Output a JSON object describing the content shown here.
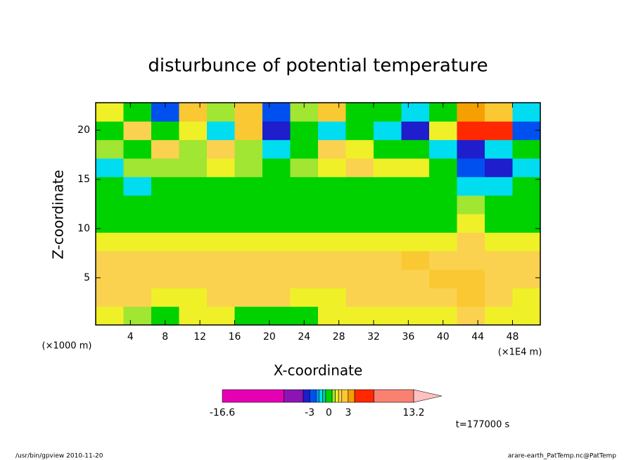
{
  "chart_data": {
    "type": "contour",
    "title": "disturbunce of potential temperature",
    "xlabel": "X-coordinate",
    "ylabel": "Z-coordinate",
    "x_unit_left": "(×1000 m)",
    "x_unit_right": "(×1E4 m)",
    "time_label": "t=177000 s",
    "footer_left": "/usr/bin/gpview  2010-11-20",
    "footer_right": "arare-earth_PatTemp.nc@PatTemp",
    "xlim": [
      0,
      51.2
    ],
    "ylim": [
      0.2,
      22.8
    ],
    "xticks": [
      4,
      8,
      12,
      16,
      20,
      24,
      28,
      32,
      36,
      40,
      44,
      48
    ],
    "yticks": [
      5,
      10,
      15,
      20
    ],
    "levels": [
      -16.6,
      -7,
      -4,
      -3,
      -2,
      -1.5,
      -1,
      -0.5,
      0.5,
      1,
      1.5,
      2,
      3,
      4,
      7,
      13.2
    ],
    "colors": [
      "#e600b4",
      "#8c14b4",
      "#1e1ecd",
      "#0050f0",
      "#0096f0",
      "#00dcf0",
      "#00c8a0",
      "#00d200",
      "#a0e632",
      "#f0f028",
      "#fad250",
      "#fac832",
      "#f5a000",
      "#ff2800",
      "#fa8072"
    ],
    "over_color": "#ffc0c0",
    "colorbar_ticks": [
      -16.6,
      -3,
      0,
      3,
      13.2
    ],
    "field": [
      [
        1.2,
        0.8,
        0.2,
        1.2,
        1.2,
        0.2,
        0.2,
        0.2,
        1.2,
        1.2,
        1.2,
        1.2,
        1.2,
        1.5,
        1.2,
        1.2
      ],
      [
        1.7,
        1.7,
        1.2,
        1.2,
        1.7,
        1.7,
        1.7,
        1.2,
        1.2,
        1.7,
        1.7,
        1.7,
        1.7,
        2.5,
        1.7,
        1.2
      ],
      [
        1.7,
        1.7,
        1.7,
        1.7,
        1.7,
        1.7,
        1.7,
        1.7,
        1.7,
        1.7,
        1.7,
        1.7,
        2.2,
        2.5,
        1.7,
        1.7
      ],
      [
        1.7,
        1.7,
        1.7,
        1.7,
        1.7,
        1.7,
        1.7,
        1.7,
        1.7,
        1.7,
        1.7,
        2.2,
        1.7,
        1.7,
        1.7,
        1.7
      ],
      [
        1.2,
        1.2,
        1.2,
        1.2,
        1.2,
        1.2,
        1.2,
        1.2,
        1.2,
        1.2,
        1.2,
        1.2,
        1.2,
        1.7,
        1.2,
        1.2
      ],
      [
        0,
        0,
        0,
        0,
        0,
        0,
        0,
        0,
        0,
        0,
        0,
        0,
        0,
        1.2,
        0,
        0
      ],
      [
        0,
        0,
        0,
        0,
        0,
        0,
        0,
        0,
        0,
        0,
        0,
        0,
        0,
        0.8,
        0,
        0
      ],
      [
        0,
        -1.2,
        0,
        0,
        0,
        0,
        0,
        0,
        0,
        0,
        0,
        0,
        0,
        -1.2,
        -1.2,
        0
      ],
      [
        -1.2,
        0.8,
        0.8,
        0.8,
        1.2,
        0.8,
        0,
        0.8,
        1.2,
        1.7,
        1.2,
        1.2,
        0,
        -2.5,
        -3.5,
        -1.2
      ],
      [
        0.8,
        0,
        1.7,
        0.8,
        1.7,
        0.8,
        -1.2,
        0,
        1.7,
        1.2,
        0,
        0,
        -1.2,
        -3.5,
        -1.2,
        0
      ],
      [
        0,
        1.7,
        0,
        1.2,
        -1.2,
        2.5,
        -3.5,
        0,
        -1.2,
        0,
        -1.2,
        -3.5,
        1.2,
        5,
        5,
        -2.5
      ],
      [
        1.2,
        0,
        -2.5,
        2.5,
        0.8,
        2.5,
        -2.5,
        0.8,
        2.5,
        0,
        0,
        -1.2,
        0,
        3.5,
        2.5,
        -1.2
      ]
    ]
  }
}
